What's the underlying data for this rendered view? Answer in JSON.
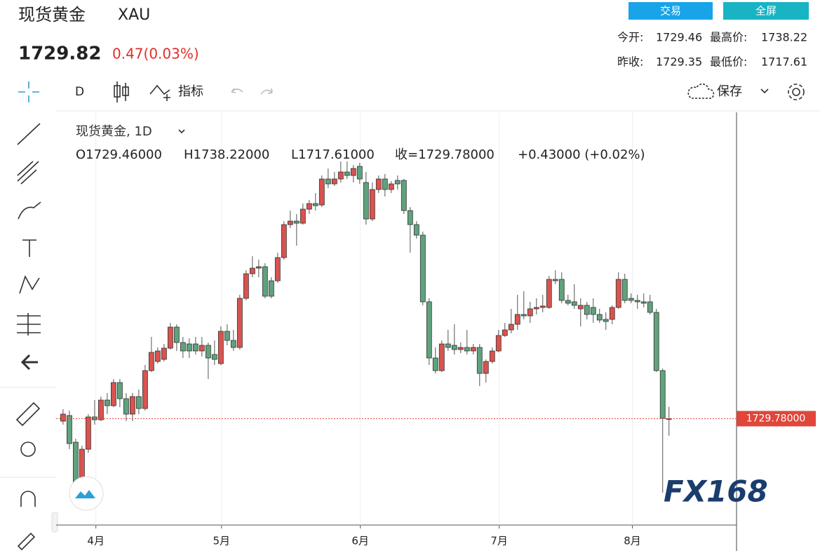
{
  "header": {
    "title": "现货黄金",
    "symbol": "XAU",
    "price": "1729.82",
    "change": "0.47(0.03%)",
    "buttons": [
      "交易",
      "全屏"
    ],
    "stats": [
      [
        "今开:",
        "1729.46",
        "最高价:",
        "1738.22"
      ],
      [
        "昨收:",
        "1729.35",
        "最低价:",
        "1717.61"
      ]
    ]
  },
  "toolbar": {
    "interval": "D",
    "indicators": "指标",
    "save": "保存"
  },
  "watermark": "FX168",
  "chart_data": {
    "type": "candlestick",
    "title": "现货黄金, 1D",
    "ohlc_legend": [
      "O1729.46000",
      "H1738.22000",
      "L1717.61000",
      "收=1729.78000",
      "+0.43000 (+0.02%)"
    ],
    "open": [
      1728,
      1732,
      1713,
      1688,
      1708,
      1731,
      1729,
      1743,
      1739,
      1755.5,
      1744,
      1733,
      1745.5,
      1737,
      1764,
      1770.5,
      1772,
      1780,
      1795,
      1784,
      1783,
      1783,
      1778,
      1782,
      1775.5,
      1769,
      1792,
      1785.5,
      1780.5,
      1815.5,
      1833,
      1837,
      1838,
      1828,
      1828,
      1844.5,
      1868,
      1870.5,
      1869,
      1879,
      1883,
      1882,
      1900.5,
      1897,
      1900.5,
      1905.5,
      1903,
      1909.5,
      1898,
      1872,
      1893,
      1900.5,
      1893,
      1899.5,
      1899.5,
      1878,
      1868,
      1860.5,
      1813,
      1773,
      1764,
      1783,
      1782,
      1779,
      1780.5,
      1778,
      1780.5,
      1762,
      1770.5,
      1778,
      1789,
      1793,
      1797,
      1804,
      1803,
      1808,
      1809,
      1809,
      1829,
      1829,
      1814,
      1813,
      1808,
      1810.5,
      1809,
      1804,
      1800.5,
      1800.5,
      1809,
      1829,
      1815.5,
      1814,
      1813,
      1813,
      1805.5,
      1764,
      1729.46
    ],
    "high": [
      1736.5,
      1735.5,
      1715.5,
      1710.5,
      1733,
      1743,
      1745.5,
      1748,
      1758,
      1758,
      1748,
      1748,
      1750.5,
      1768,
      1788,
      1780.5,
      1783,
      1798,
      1797,
      1788,
      1787,
      1788,
      1788,
      1784,
      1785.5,
      1795.5,
      1797,
      1793,
      1818,
      1835.5,
      1845.5,
      1843,
      1840.5,
      1830.5,
      1848,
      1870.5,
      1878,
      1875.5,
      1883,
      1885.5,
      1890.5,
      1903,
      1908,
      1905.5,
      1913,
      1913,
      1910.5,
      1912,
      1905.5,
      1898,
      1903,
      1904,
      1899,
      1903,
      1900.5,
      1880.5,
      1870.5,
      1863,
      1815.5,
      1780.5,
      1785.5,
      1793,
      1797,
      1784,
      1793,
      1783,
      1783,
      1772,
      1780.5,
      1793,
      1798,
      1808,
      1818,
      1820.5,
      1813,
      1815.5,
      1818,
      1831.5,
      1835.5,
      1834,
      1818,
      1825.5,
      1815.5,
      1813,
      1815.5,
      1808,
      1805.5,
      1810.5,
      1834,
      1833,
      1819,
      1818,
      1819,
      1818,
      1808,
      1765.5,
      1738.22
    ],
    "low": [
      1725.5,
      1708,
      1678,
      1683,
      1705.5,
      1725.5,
      1728,
      1733,
      1738,
      1738,
      1728,
      1728,
      1733,
      1735.5,
      1763,
      1769,
      1770.5,
      1779,
      1778,
      1773,
      1773,
      1775.5,
      1774,
      1758,
      1768,
      1768,
      1782,
      1778,
      1779,
      1814,
      1830.5,
      1830.5,
      1815.5,
      1815.5,
      1826.5,
      1843,
      1865.5,
      1853,
      1868,
      1875.5,
      1878,
      1880.5,
      1894,
      1895.5,
      1898,
      1900.5,
      1898,
      1897,
      1868,
      1870.5,
      1890.5,
      1888,
      1890.5,
      1893,
      1875.5,
      1848,
      1858,
      1810.5,
      1768,
      1762,
      1763,
      1778,
      1775.5,
      1776.5,
      1775.5,
      1775.5,
      1753,
      1755.5,
      1769,
      1777,
      1788,
      1790.5,
      1793,
      1800.5,
      1798,
      1804,
      1805.5,
      1808,
      1825.5,
      1812,
      1810.5,
      1808,
      1795.5,
      1800.5,
      1798,
      1798,
      1793,
      1797,
      1808,
      1812,
      1812,
      1808,
      1809,
      1804,
      1763,
      1677,
      1717.61
    ],
    "close": [
      1733,
      1712,
      1683,
      1708,
      1731,
      1729,
      1743,
      1739,
      1755.5,
      1744,
      1733,
      1745.5,
      1737,
      1764,
      1777,
      1778,
      1780,
      1795,
      1784,
      1778,
      1778,
      1778,
      1782,
      1773,
      1772,
      1792,
      1785.5,
      1780.5,
      1815.5,
      1833,
      1837,
      1838,
      1817,
      1817,
      1844.5,
      1868,
      1870.5,
      1869,
      1879,
      1883,
      1881.5,
      1900.5,
      1897,
      1900.5,
      1905.5,
      1903,
      1908,
      1900.5,
      1872,
      1893,
      1900.5,
      1893,
      1897,
      1897,
      1878,
      1868,
      1860.5,
      1813,
      1773,
      1764,
      1783,
      1780.5,
      1779,
      1780.5,
      1778,
      1780.5,
      1762,
      1770.5,
      1778,
      1789,
      1793,
      1797,
      1804,
      1803,
      1808,
      1809,
      1810,
      1829,
      1828,
      1814,
      1812,
      1810.5,
      1810.5,
      1804,
      1804,
      1800,
      1799,
      1809,
      1829,
      1814,
      1814,
      1813,
      1812,
      1805.5,
      1764,
      1730,
      1729.78
    ],
    "up_color": "#d9534f",
    "down_color": "#5fa37d",
    "xlim": [
      -1.1,
      106.7
    ],
    "ylim": [
      1654,
      1948
    ],
    "xticks": [
      {
        "value": 5.2,
        "label": "4月"
      },
      {
        "value": 25.1,
        "label": "5月"
      },
      {
        "value": 47.1,
        "label": "6月"
      },
      {
        "value": 69.1,
        "label": "7月"
      },
      {
        "value": 90.2,
        "label": "8月"
      }
    ],
    "grid": true,
    "price_line": {
      "value": 1729.78,
      "label": "1729.78000",
      "color": "#e0463a"
    }
  }
}
